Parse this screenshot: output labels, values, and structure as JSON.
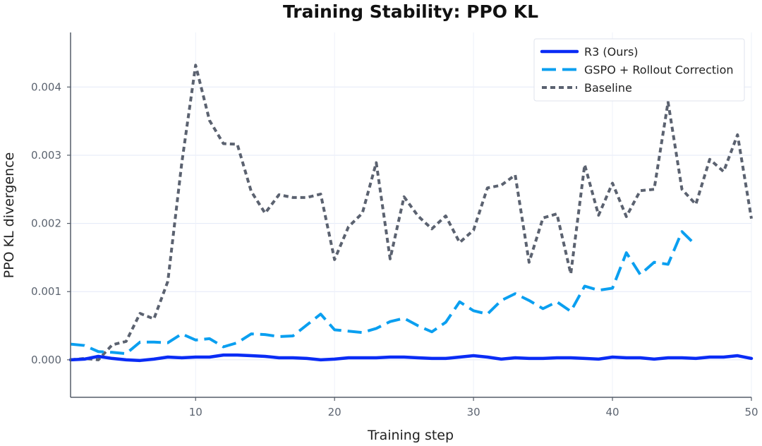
{
  "chart_data": {
    "type": "line",
    "title": "Training Stability: PPO KL",
    "xlabel": "Training step",
    "ylabel": "PPO KL divergence",
    "xlim": [
      1,
      50
    ],
    "ylim": [
      -0.00055,
      0.0048
    ],
    "xticks": [
      10,
      20,
      30,
      40,
      50
    ],
    "xtick_labels": [
      "10",
      "20",
      "30",
      "40",
      "50"
    ],
    "yticks": [
      0.0,
      0.001,
      0.002,
      0.003,
      0.004
    ],
    "ytick_labels": [
      "0.000",
      "0.001",
      "0.002",
      "0.003",
      "0.004"
    ],
    "grid": true,
    "legend_position": "top-right",
    "series": [
      {
        "name": "R3 (Ours)",
        "color": "#0a2cf5",
        "style": "solid",
        "x": [
          1,
          2,
          3,
          4,
          5,
          6,
          7,
          8,
          9,
          10,
          11,
          12,
          13,
          14,
          15,
          16,
          17,
          18,
          19,
          20,
          21,
          22,
          23,
          24,
          25,
          26,
          27,
          28,
          29,
          30,
          31,
          32,
          33,
          34,
          35,
          36,
          37,
          38,
          39,
          40,
          41,
          42,
          43,
          44,
          45,
          46,
          47,
          48,
          49,
          50
        ],
        "values": [
          0.0,
          1e-05,
          5e-05,
          2e-05,
          0.0,
          -1e-05,
          1e-05,
          4e-05,
          3e-05,
          4e-05,
          4e-05,
          7e-05,
          7e-05,
          6e-05,
          5e-05,
          3e-05,
          3e-05,
          2e-05,
          0.0,
          1e-05,
          3e-05,
          3e-05,
          3e-05,
          4e-05,
          4e-05,
          3e-05,
          2e-05,
          2e-05,
          4e-05,
          6e-05,
          4e-05,
          1e-05,
          3e-05,
          2e-05,
          2e-05,
          3e-05,
          3e-05,
          2e-05,
          1e-05,
          4e-05,
          3e-05,
          3e-05,
          1e-05,
          3e-05,
          3e-05,
          2e-05,
          4e-05,
          4e-05,
          6e-05,
          2e-05
        ]
      },
      {
        "name": "GSPO + Rollout Correction",
        "color": "#0a9ff0",
        "style": "dashed",
        "x": [
          1,
          2,
          3,
          4,
          5,
          6,
          7,
          8,
          9,
          10,
          11,
          12,
          13,
          14,
          15,
          16,
          17,
          18,
          19,
          20,
          21,
          22,
          23,
          24,
          25,
          26,
          27,
          28,
          29,
          30,
          31,
          32,
          33,
          34,
          35,
          36,
          37,
          38,
          39,
          40,
          41,
          42,
          43,
          44,
          45,
          46
        ],
        "values": [
          0.00023,
          0.00021,
          0.00012,
          0.00011,
          9e-05,
          0.00026,
          0.00026,
          0.00025,
          0.00038,
          0.00029,
          0.00031,
          0.00019,
          0.00025,
          0.00038,
          0.00037,
          0.00034,
          0.00035,
          0.00051,
          0.00067,
          0.00044,
          0.00042,
          0.0004,
          0.00046,
          0.00056,
          0.00061,
          0.0005,
          0.00041,
          0.00055,
          0.00085,
          0.00072,
          0.00067,
          0.00087,
          0.00097,
          0.00087,
          0.00075,
          0.00085,
          0.00071,
          0.00108,
          0.00102,
          0.00105,
          0.00157,
          0.00125,
          0.00143,
          0.0014,
          0.00188,
          0.00168
        ]
      },
      {
        "name": "Baseline",
        "color": "#5b6270",
        "style": "dotted",
        "x": [
          1,
          2,
          3,
          4,
          5,
          6,
          7,
          8,
          9,
          10,
          11,
          12,
          13,
          14,
          15,
          16,
          17,
          18,
          19,
          20,
          21,
          22,
          23,
          24,
          25,
          26,
          27,
          28,
          29,
          30,
          31,
          32,
          33,
          34,
          35,
          36,
          37,
          38,
          39,
          40,
          41,
          42,
          43,
          44,
          45,
          46,
          47,
          48,
          49,
          50
        ],
        "values": [
          0.0,
          2e-05,
          0.0,
          0.00022,
          0.00027,
          0.00068,
          0.0006,
          0.00115,
          0.00288,
          0.00432,
          0.00351,
          0.00317,
          0.00316,
          0.00247,
          0.00215,
          0.00242,
          0.00238,
          0.00238,
          0.00243,
          0.00147,
          0.00195,
          0.00215,
          0.00289,
          0.00148,
          0.00239,
          0.00211,
          0.00192,
          0.00211,
          0.00172,
          0.0019,
          0.00252,
          0.00256,
          0.00271,
          0.00143,
          0.00208,
          0.00214,
          0.00126,
          0.00286,
          0.00212,
          0.00259,
          0.0021,
          0.00248,
          0.0025,
          0.00378,
          0.0025,
          0.00228,
          0.00294,
          0.00276,
          0.0033,
          0.00207
        ]
      }
    ]
  }
}
